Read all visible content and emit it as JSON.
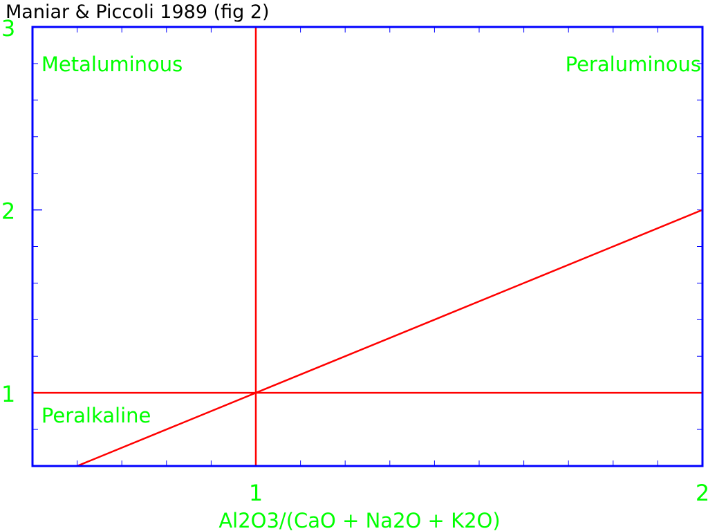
{
  "chart_data": {
    "type": "line",
    "title": "Maniar & Piccoli 1989 (fig 2)",
    "xlabel": "Al2O3/(CaO + Na2O + K2O)",
    "ylabel": "",
    "xlim": [
      0.5,
      2
    ],
    "ylim": [
      0.6,
      3
    ],
    "x_ticks": [
      1,
      2
    ],
    "y_ticks": [
      1,
      2,
      3
    ],
    "grid": false,
    "series": [
      {
        "values": [
          {
            "x": 1,
            "y": 0.6
          },
          {
            "x": 1,
            "y": 3
          }
        ]
      },
      {
        "values": [
          {
            "x": 0.5,
            "y": 1
          },
          {
            "x": 2,
            "y": 1
          }
        ]
      },
      {
        "values": [
          {
            "x": 0.5,
            "y": 0.5
          },
          {
            "x": 2,
            "y": 2
          }
        ]
      }
    ],
    "annotations": [
      {
        "text": "Metaluminous",
        "x": 0.52,
        "y": 2.8
      },
      {
        "text": "Peraluminous",
        "x": 2.0,
        "y": 2.8
      },
      {
        "text": "Peralkaline",
        "x": 0.52,
        "y": 0.88
      }
    ],
    "colors": {
      "frame": "#0000ff",
      "lines": "#ff0000",
      "labels": "#00ff00",
      "title": "#000000"
    }
  }
}
